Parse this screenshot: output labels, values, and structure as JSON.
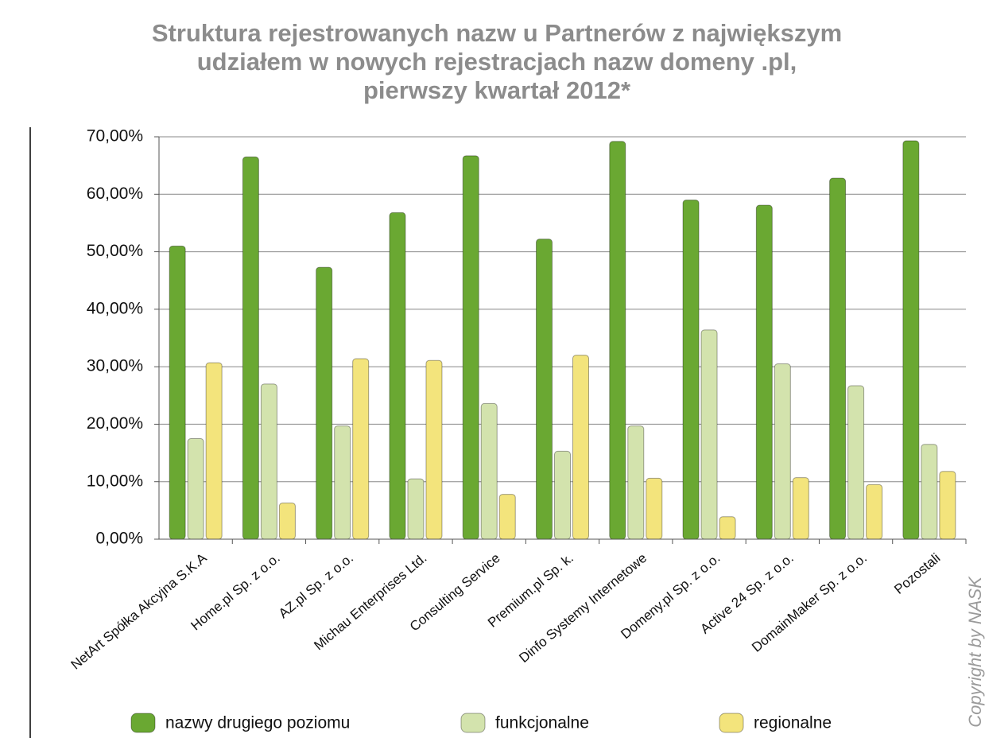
{
  "chart_data": {
    "type": "bar",
    "title": [
      "Struktura rejestrowanych nazw u Partnerów z największym",
      "udziałem w nowych rejestracjach nazw domeny .pl,",
      "pierwszy kwartał 2012*"
    ],
    "categories": [
      "NetArt Spółka Akcyjna S.K.A",
      "Home.pl Sp. z o.o.",
      "AZ.pl Sp. z o.o.",
      "Michau Enterprises Ltd.",
      "Consulting Service",
      "Premium.pl Sp. k.",
      "Dinfo Systemy Internetowe",
      "Domeny.pl Sp. z o.o.",
      "Active 24 Sp. z o.o.",
      "DomainMaker Sp. z o.o.",
      "Pozostali"
    ],
    "series": [
      {
        "name": "nazwy drugiego poziomu",
        "color": "#6aa832",
        "values": [
          51,
          66.5,
          47.3,
          56.8,
          66.7,
          52.2,
          69.2,
          59,
          58.1,
          62.8,
          69.3
        ]
      },
      {
        "name": "funkcjonalne",
        "color": "#d3e3ad",
        "values": [
          17.5,
          27,
          19.7,
          10.5,
          23.6,
          15.3,
          19.7,
          36.4,
          30.5,
          26.7,
          16.5
        ]
      },
      {
        "name": "regionalne",
        "color": "#f3e47c",
        "values": [
          30.7,
          6.3,
          31.4,
          31.1,
          7.8,
          32,
          10.6,
          3.9,
          10.7,
          9.5,
          11.8
        ]
      }
    ],
    "ylim": [
      0,
      70
    ],
    "yticks": [
      {
        "value": 0,
        "label": "0,00%"
      },
      {
        "value": 10,
        "label": "10,00%"
      },
      {
        "value": 20,
        "label": "20,00%"
      },
      {
        "value": 30,
        "label": "30,00%"
      },
      {
        "value": 40,
        "label": "40,00%"
      },
      {
        "value": 50,
        "label": "50,00%"
      },
      {
        "value": 60,
        "label": "60,00%"
      },
      {
        "value": 70,
        "label": "70,00%"
      }
    ],
    "grid": true,
    "legend": "bottom",
    "annotation": "Copyright by NASK"
  }
}
